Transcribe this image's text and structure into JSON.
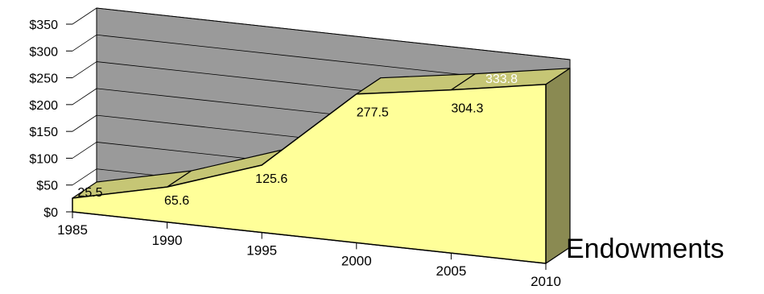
{
  "chart_data": {
    "type": "area",
    "title": "",
    "xlabel": "",
    "ylabel": "",
    "y_axis": {
      "ticks": [
        "$0",
        "$50",
        "$100",
        "$150",
        "$200",
        "$250",
        "$300",
        "$350"
      ],
      "min": 0,
      "max": 350
    },
    "x_axis": {
      "ticks": [
        "1985",
        "1990",
        "1995",
        "2000",
        "2005",
        "2010"
      ]
    },
    "series": [
      {
        "name": "Endowments",
        "x": [
          1985,
          1990,
          1995,
          2000,
          2005,
          2010
        ],
        "values": [
          25.5,
          65.6,
          125.6,
          277.5,
          304.3,
          333.8
        ],
        "data_labels": [
          "25.5",
          "65.6",
          "125.6",
          "277.5",
          "304.3",
          "333.8"
        ],
        "fill_color": "#ffff99",
        "top_color": "#c6c675",
        "side_color": "#8a8a52"
      }
    ],
    "grid": true,
    "legend": {
      "position": "right",
      "entries": [
        "Endowments"
      ]
    },
    "style": {
      "back_wall_color": "#9a9a9a",
      "floor_color": "#ffffff",
      "gridline_color": "#000000"
    }
  }
}
